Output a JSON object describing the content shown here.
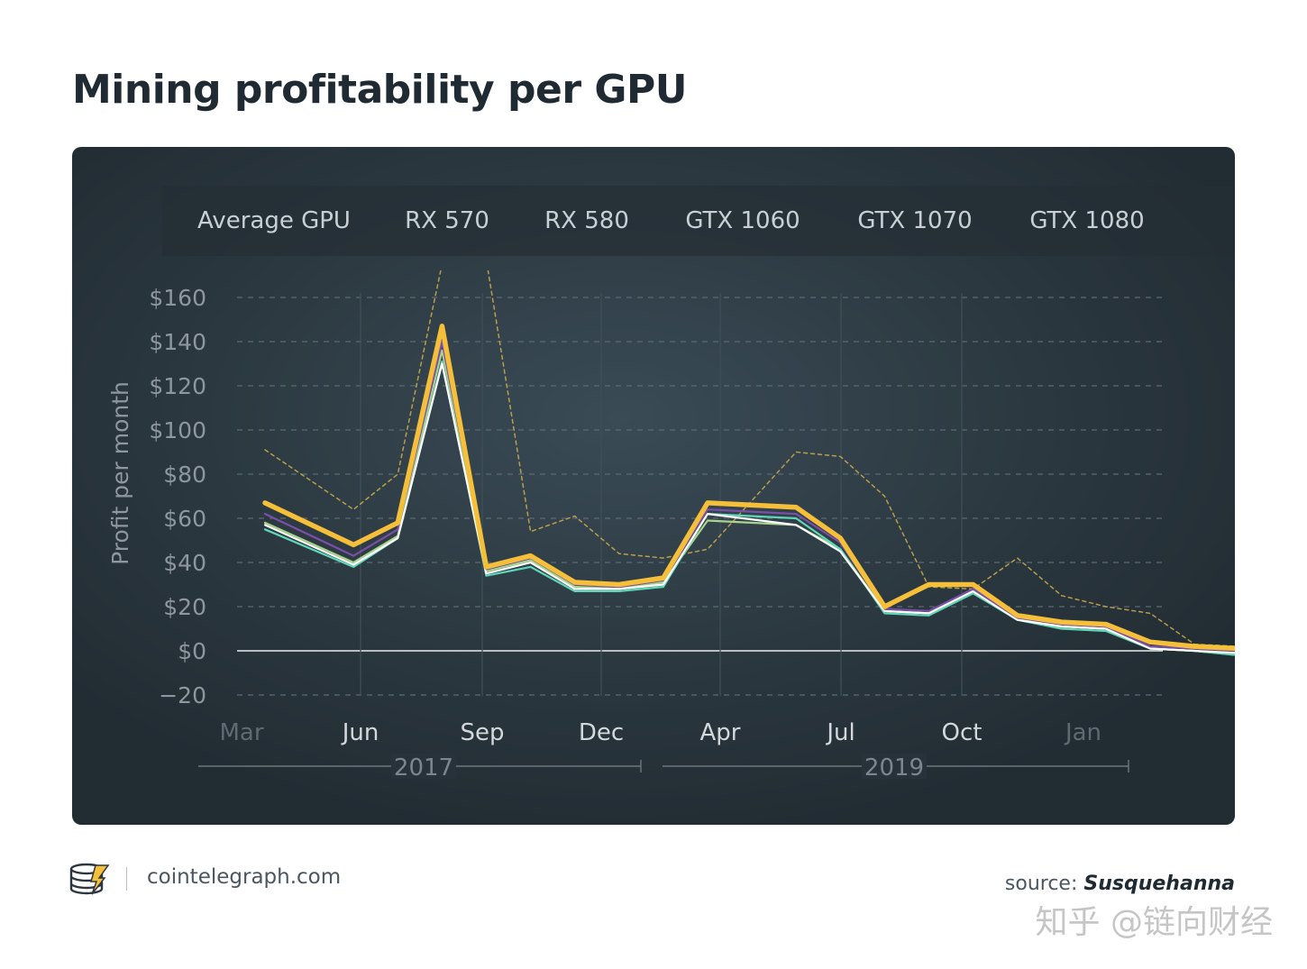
{
  "title": "Mining profitability per GPU",
  "legend": [
    "Average GPU",
    "RX 570",
    "RX 580",
    "GTX 1060",
    "GTX 1070",
    "GTX 1080"
  ],
  "footer": {
    "site": "cointelegraph.com",
    "source_label": "source:",
    "source_name": "Susquehanna",
    "watermark": "知乎 @链向财经"
  },
  "colors": {
    "highlight": "#f6bf3a",
    "dashed": "#c9a84a",
    "white": "#ffffff",
    "cyan": "#5ed6b8",
    "purple": "#7b4fa8",
    "green": "#a8d48c",
    "axis_text": "#8e979d",
    "month_text": "#d2d8dc",
    "year_text": "#7d868c"
  },
  "chart_data": {
    "type": "line",
    "ylabel": "Profit per month",
    "ylim": [
      -20,
      160
    ],
    "yticks": [
      160,
      140,
      120,
      100,
      80,
      60,
      40,
      20,
      0,
      -20
    ],
    "ytick_labels": [
      "$160",
      "$140",
      "$120",
      "$100",
      "$80",
      "$60",
      "$40",
      "$20",
      "$0",
      "−20"
    ],
    "x": [
      "2017-03",
      "2017-05",
      "2017-06",
      "2017-07",
      "2017-08",
      "2017-09",
      "2017-10",
      "2017-11",
      "2017-12",
      "2018-01",
      "2018-03",
      "2018-04",
      "2018-05",
      "2018-06",
      "2018-07",
      "2018-08",
      "2018-09",
      "2018-10",
      "2018-11",
      "2018-12",
      "2019-01",
      "2019-02"
    ],
    "xticks": [
      {
        "label": "Mar",
        "dim": true
      },
      {
        "label": "Jun",
        "dim": false
      },
      {
        "label": "Sep",
        "dim": false
      },
      {
        "label": "Dec",
        "dim": false
      },
      {
        "label": "Apr",
        "dim": false
      },
      {
        "label": "Jul",
        "dim": false
      },
      {
        "label": "Oct",
        "dim": false
      },
      {
        "label": "Jan",
        "dim": true
      }
    ],
    "years": [
      "2017",
      "2019"
    ],
    "grid": true,
    "legend_position": "top",
    "series": [
      {
        "style": "dashed",
        "color": "#c9a84a",
        "values": [
          91,
          64,
          80,
          175,
          177,
          54,
          61,
          44,
          42,
          46,
          90,
          88,
          70,
          29,
          28,
          42,
          25,
          20,
          17,
          3,
          2,
          0
        ]
      },
      {
        "style": "solid",
        "color": "#a8d48c",
        "values": [
          58,
          40,
          52,
          136,
          36,
          41,
          29,
          28,
          31,
          59,
          57,
          46,
          18,
          17,
          28,
          15,
          11,
          10,
          1,
          0,
          -2,
          -2
        ]
      },
      {
        "style": "solid",
        "color": "#5ed6b8",
        "values": [
          55,
          38,
          51,
          131,
          34,
          38,
          27,
          27,
          29,
          62,
          60,
          46,
          17,
          16,
          26,
          14,
          10,
          9,
          1,
          0,
          -2,
          -3
        ]
      },
      {
        "style": "solid",
        "color": "#ffffff",
        "values": [
          57,
          39,
          51,
          130,
          35,
          40,
          28,
          28,
          30,
          62,
          57,
          45,
          18,
          17,
          27,
          14,
          11,
          10,
          1,
          0,
          -1,
          -2
        ]
      },
      {
        "style": "solid",
        "color": "#7b4fa8",
        "values": [
          62,
          43,
          55,
          140,
          37,
          42,
          30,
          29,
          32,
          64,
          62,
          49,
          19,
          18,
          28,
          15,
          12,
          11,
          2,
          1,
          0,
          -1
        ]
      },
      {
        "style": "highlight",
        "color": "#f6bf3a",
        "values": [
          67,
          48,
          58,
          147,
          38,
          43,
          31,
          30,
          33,
          67,
          65,
          51,
          20,
          30,
          30,
          16,
          13,
          12,
          4,
          2,
          1,
          0
        ]
      }
    ]
  }
}
